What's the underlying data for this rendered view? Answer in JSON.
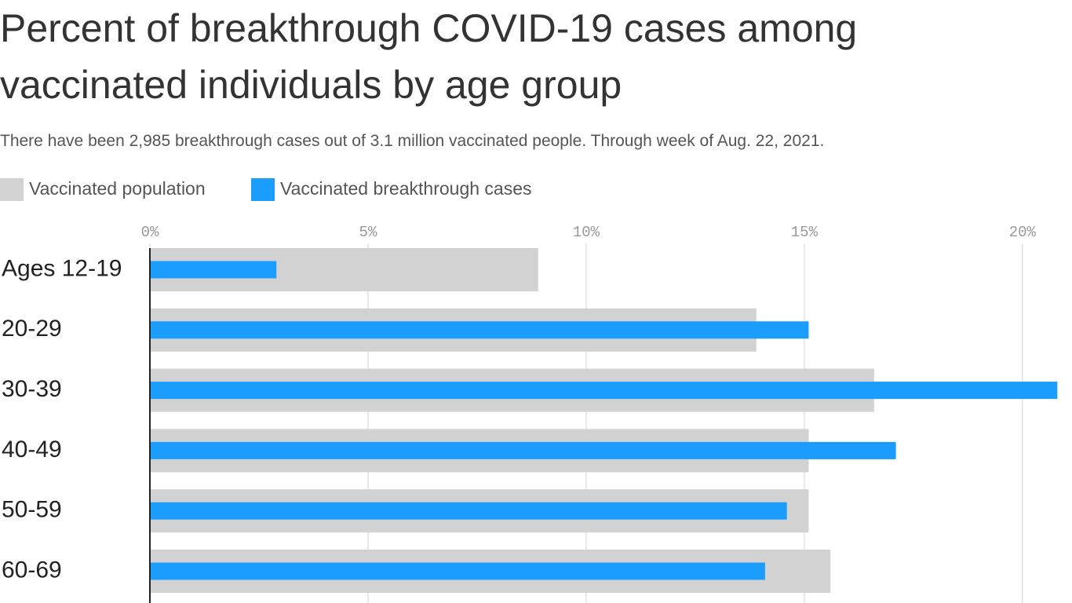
{
  "chart_data": {
    "type": "bar",
    "orientation": "horizontal",
    "title": "Percent of breakthrough COVID-19 cases among vaccinated individuals by age group",
    "subtitle": "There have been 2,985 breakthrough cases out of 3.1 million vaccinated people. Through week of Aug. 22, 2021.",
    "categories": [
      "Ages 12-19",
      "20-29",
      "30-39",
      "40-49",
      "50-59",
      "60-69"
    ],
    "series": [
      {
        "name": "Vaccinated population",
        "color": "#d2d2d2",
        "values": [
          8.9,
          13.9,
          16.6,
          15.1,
          15.1,
          15.6
        ]
      },
      {
        "name": "Vaccinated breakthrough cases",
        "color": "#1a9dfc",
        "values": [
          2.9,
          15.1,
          20.8,
          17.1,
          14.6,
          14.1
        ]
      }
    ],
    "xlim": [
      0,
      21.1
    ],
    "xticks": [
      {
        "value": 0,
        "label": "0%"
      },
      {
        "value": 5,
        "label": "5%"
      },
      {
        "value": 10,
        "label": "10%"
      },
      {
        "value": 15,
        "label": "15%"
      },
      {
        "value": 20,
        "label": "20%"
      }
    ],
    "grid": true
  }
}
